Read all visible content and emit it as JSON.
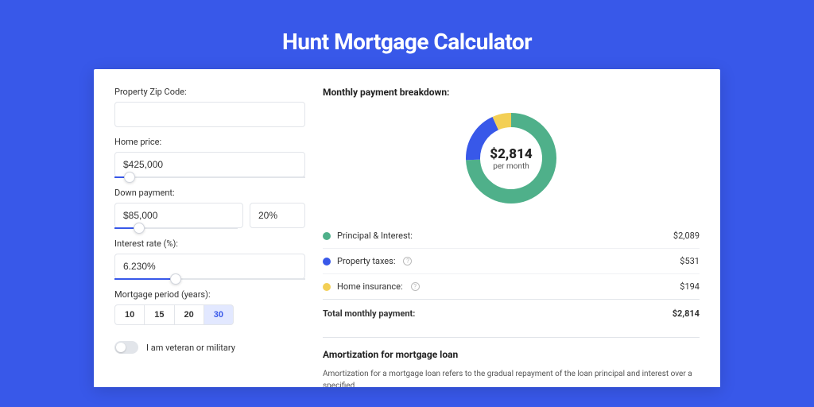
{
  "page": {
    "title": "Hunt Mortgage Calculator",
    "background_color": "#3858e9",
    "accent_color": "#3858e9"
  },
  "form": {
    "zip": {
      "label": "Property Zip Code:",
      "value": ""
    },
    "home_price": {
      "label": "Home price:",
      "value": "$425,000",
      "slider_pct": 8
    },
    "down_payment": {
      "label": "Down payment:",
      "amount": "$85,000",
      "percent": "20%",
      "slider_pct": 20
    },
    "interest_rate": {
      "label": "Interest rate (%):",
      "value": "6.230%",
      "slider_pct": 32
    },
    "period": {
      "label": "Mortgage period (years):",
      "options": [
        "10",
        "15",
        "20",
        "30"
      ],
      "selected": "30"
    },
    "veteran": {
      "label": "I am veteran or military",
      "on": false
    }
  },
  "breakdown": {
    "title": "Monthly payment breakdown:",
    "center_amount": "$2,814",
    "center_sub": "per month",
    "donut": {
      "radius": 48,
      "stroke_width": 18,
      "segments": [
        {
          "key": "principal_interest",
          "pct": 74.2,
          "color": "#4fb08a"
        },
        {
          "key": "property_taxes",
          "pct": 18.9,
          "color": "#3858e9"
        },
        {
          "key": "home_insurance",
          "pct": 6.9,
          "color": "#f3cf55"
        }
      ]
    },
    "items": [
      {
        "label": "Principal & Interest:",
        "amount": "$2,089",
        "color": "#4fb08a",
        "info": false
      },
      {
        "label": "Property taxes:",
        "amount": "$531",
        "color": "#3858e9",
        "info": true
      },
      {
        "label": "Home insurance:",
        "amount": "$194",
        "color": "#f3cf55",
        "info": true
      }
    ],
    "total": {
      "label": "Total monthly payment:",
      "amount": "$2,814"
    }
  },
  "amortization": {
    "title": "Amortization for mortgage loan",
    "text": "Amortization for a mortgage loan refers to the gradual repayment of the loan principal and interest over a specified"
  }
}
